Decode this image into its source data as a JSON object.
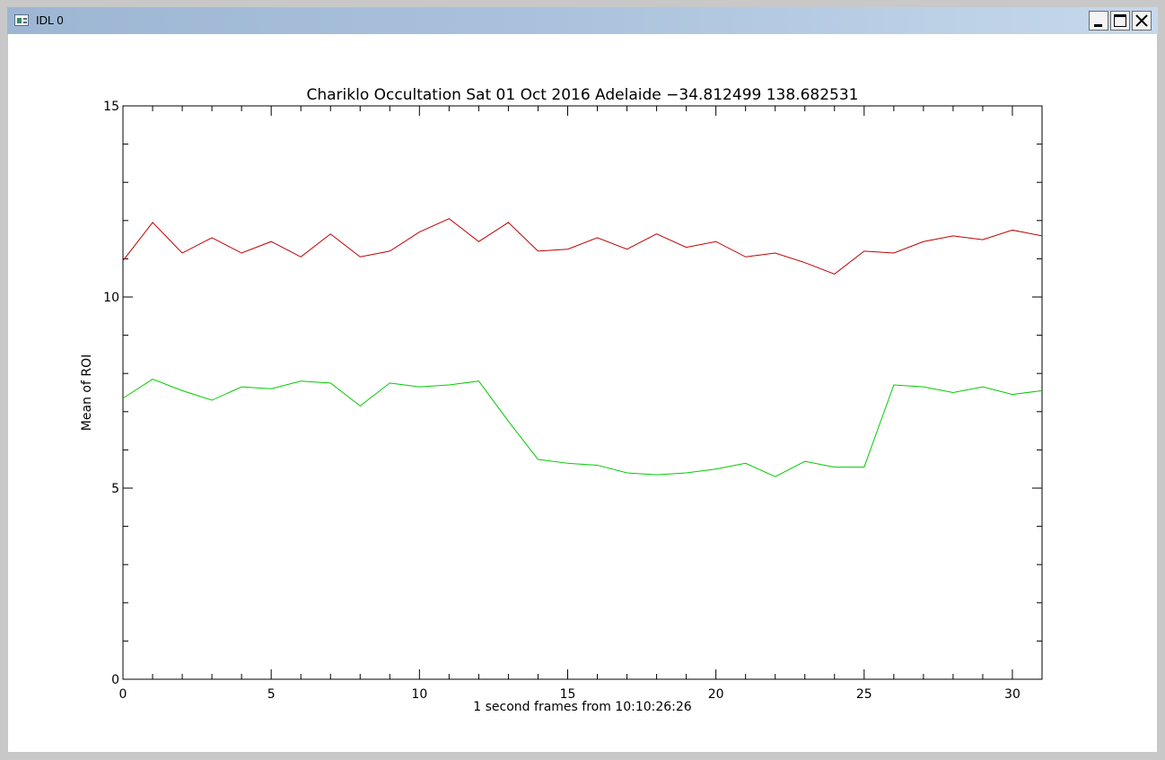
{
  "window": {
    "title": "IDL 0",
    "icon": "idl-window-icon",
    "controls": [
      "minimize-icon",
      "maximize-icon",
      "close-icon"
    ]
  },
  "chart_data": {
    "type": "line",
    "title": "Chariklo Occultation Sat 01 Oct 2016 Adelaide −34.812499 138.682531",
    "xlabel": "1 second frames from 10:10:26:26",
    "ylabel": "Mean of ROI",
    "xlim": [
      0,
      31
    ],
    "ylim": [
      0,
      15
    ],
    "xticks": [
      0,
      5,
      10,
      15,
      20,
      25,
      30
    ],
    "yticks": [
      0,
      5,
      10,
      15
    ],
    "x": [
      0,
      1,
      2,
      3,
      4,
      5,
      6,
      7,
      8,
      9,
      10,
      11,
      12,
      13,
      14,
      15,
      16,
      17,
      18,
      19,
      20,
      21,
      22,
      23,
      24,
      25,
      26,
      27,
      28,
      29,
      30,
      31
    ],
    "series": [
      {
        "color": "#c00000",
        "values": [
          10.95,
          11.95,
          11.15,
          11.55,
          11.15,
          11.45,
          11.05,
          11.65,
          11.05,
          11.2,
          11.7,
          12.05,
          11.45,
          11.95,
          11.2,
          11.25,
          11.55,
          11.25,
          11.65,
          11.3,
          11.45,
          11.05,
          11.15,
          10.9,
          10.6,
          11.2,
          11.15,
          11.45,
          11.6,
          11.5,
          11.75,
          11.6
        ]
      },
      {
        "color": "#00cc00",
        "values": [
          7.35,
          7.85,
          7.55,
          7.3,
          7.65,
          7.6,
          7.8,
          7.75,
          7.15,
          7.75,
          7.65,
          7.7,
          7.8,
          6.75,
          5.75,
          5.65,
          5.6,
          5.4,
          5.35,
          5.4,
          5.5,
          5.65,
          5.3,
          5.7,
          5.55,
          5.55,
          7.7,
          7.65,
          7.5,
          7.65,
          7.45,
          7.55
        ]
      }
    ]
  }
}
